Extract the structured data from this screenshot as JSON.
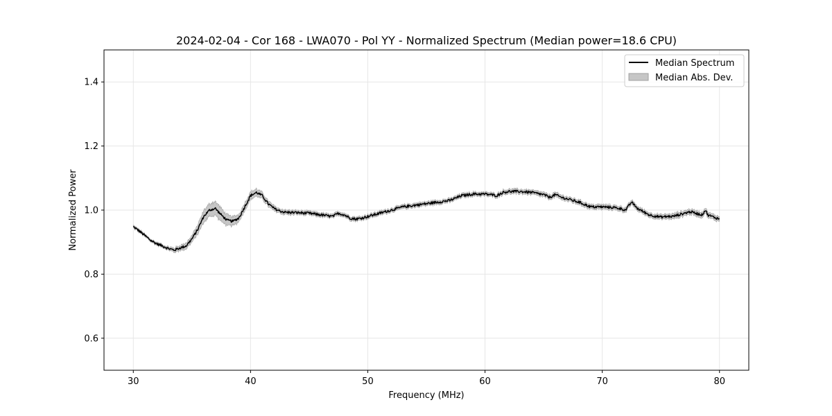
{
  "chart_data": {
    "type": "line",
    "title": "2024-02-04 - Cor 168 - LWA070 - Pol YY - Normalized Spectrum (Median power=18.6 CPU)",
    "xlabel": "Frequency (MHz)",
    "ylabel": "Normalized Power",
    "xlim": [
      27.5,
      82.5
    ],
    "ylim": [
      0.5,
      1.5
    ],
    "x_ticks": [
      30,
      40,
      50,
      60,
      70,
      80
    ],
    "y_ticks": [
      0.6,
      0.8,
      1.0,
      1.2,
      1.4
    ],
    "x_tick_labels": [
      "30",
      "40",
      "50",
      "60",
      "70",
      "80"
    ],
    "y_tick_labels": [
      "0.6",
      "0.8",
      "1.0",
      "1.2",
      "1.4"
    ],
    "grid": true,
    "legend_position": "top-right",
    "legend": [
      "Median Spectrum",
      "Median Abs. Dev."
    ],
    "colors": {
      "line": "#000000",
      "band": "#c6c6c6",
      "band_edge": "#a0a0a0",
      "grid": "#e6e6e6"
    },
    "series": [
      {
        "name": "Median Spectrum",
        "x": [
          30.0,
          30.5,
          31.0,
          31.5,
          32.0,
          32.5,
          33.0,
          33.5,
          34.0,
          34.5,
          35.0,
          35.5,
          36.0,
          36.5,
          37.0,
          37.5,
          38.0,
          38.5,
          39.0,
          39.5,
          40.0,
          40.5,
          41.0,
          41.5,
          42.0,
          42.5,
          43.0,
          44.0,
          45.0,
          46.0,
          47.0,
          47.5,
          48.0,
          48.5,
          49.0,
          49.5,
          50.0,
          51.0,
          52.0,
          53.0,
          54.0,
          55.0,
          56.0,
          57.0,
          58.0,
          59.0,
          60.0,
          60.5,
          61.0,
          61.5,
          62.0,
          63.0,
          64.0,
          65.0,
          65.5,
          66.0,
          66.5,
          67.0,
          68.0,
          69.0,
          70.0,
          71.0,
          71.5,
          72.0,
          72.5,
          73.0,
          74.0,
          75.0,
          75.5,
          76.0,
          77.0,
          77.5,
          78.0,
          78.5,
          78.8,
          79.0,
          79.5,
          80.0
        ],
        "values": [
          0.948,
          0.935,
          0.92,
          0.905,
          0.895,
          0.888,
          0.88,
          0.875,
          0.882,
          0.888,
          0.91,
          0.94,
          0.98,
          1.0,
          1.005,
          0.985,
          0.968,
          0.965,
          0.975,
          1.01,
          1.045,
          1.055,
          1.045,
          1.02,
          1.005,
          0.997,
          0.993,
          0.992,
          0.99,
          0.985,
          0.98,
          0.99,
          0.985,
          0.975,
          0.972,
          0.975,
          0.98,
          0.99,
          1.0,
          1.01,
          1.015,
          1.02,
          1.025,
          1.03,
          1.045,
          1.05,
          1.05,
          1.048,
          1.045,
          1.055,
          1.058,
          1.058,
          1.055,
          1.048,
          1.04,
          1.048,
          1.04,
          1.035,
          1.025,
          1.01,
          1.01,
          1.008,
          1.005,
          1.0,
          1.025,
          1.005,
          0.985,
          0.978,
          0.98,
          0.98,
          0.99,
          0.995,
          0.99,
          0.985,
          1.0,
          0.985,
          0.978,
          0.972
        ]
      },
      {
        "name": "Median Abs. Dev.",
        "x": [
          30.0,
          30.5,
          31.0,
          31.5,
          32.0,
          32.5,
          33.0,
          33.5,
          34.0,
          34.5,
          35.0,
          35.5,
          36.0,
          36.5,
          37.0,
          37.5,
          38.0,
          38.5,
          39.0,
          39.5,
          40.0,
          40.5,
          41.0,
          41.5,
          42.0,
          42.5,
          43.0,
          44.0,
          45.0,
          46.0,
          47.0,
          47.5,
          48.0,
          48.5,
          49.0,
          49.5,
          50.0,
          51.0,
          52.0,
          53.0,
          54.0,
          55.0,
          56.0,
          57.0,
          58.0,
          59.0,
          60.0,
          60.5,
          61.0,
          61.5,
          62.0,
          63.0,
          64.0,
          65.0,
          65.5,
          66.0,
          66.5,
          67.0,
          68.0,
          69.0,
          70.0,
          71.0,
          71.5,
          72.0,
          72.5,
          73.0,
          74.0,
          75.0,
          75.5,
          76.0,
          77.0,
          77.5,
          78.0,
          78.5,
          78.8,
          79.0,
          79.5,
          80.0
        ],
        "half_width": [
          0.004,
          0.004,
          0.004,
          0.004,
          0.004,
          0.004,
          0.005,
          0.007,
          0.008,
          0.009,
          0.011,
          0.014,
          0.018,
          0.02,
          0.022,
          0.02,
          0.017,
          0.014,
          0.012,
          0.012,
          0.012,
          0.011,
          0.01,
          0.009,
          0.008,
          0.007,
          0.007,
          0.006,
          0.006,
          0.006,
          0.006,
          0.006,
          0.006,
          0.006,
          0.006,
          0.006,
          0.006,
          0.006,
          0.006,
          0.006,
          0.006,
          0.006,
          0.006,
          0.006,
          0.006,
          0.006,
          0.006,
          0.006,
          0.006,
          0.007,
          0.007,
          0.007,
          0.007,
          0.007,
          0.007,
          0.007,
          0.007,
          0.007,
          0.007,
          0.007,
          0.007,
          0.007,
          0.007,
          0.007,
          0.007,
          0.007,
          0.007,
          0.007,
          0.007,
          0.008,
          0.008,
          0.008,
          0.008,
          0.008,
          0.008,
          0.008,
          0.008,
          0.008
        ]
      }
    ]
  }
}
